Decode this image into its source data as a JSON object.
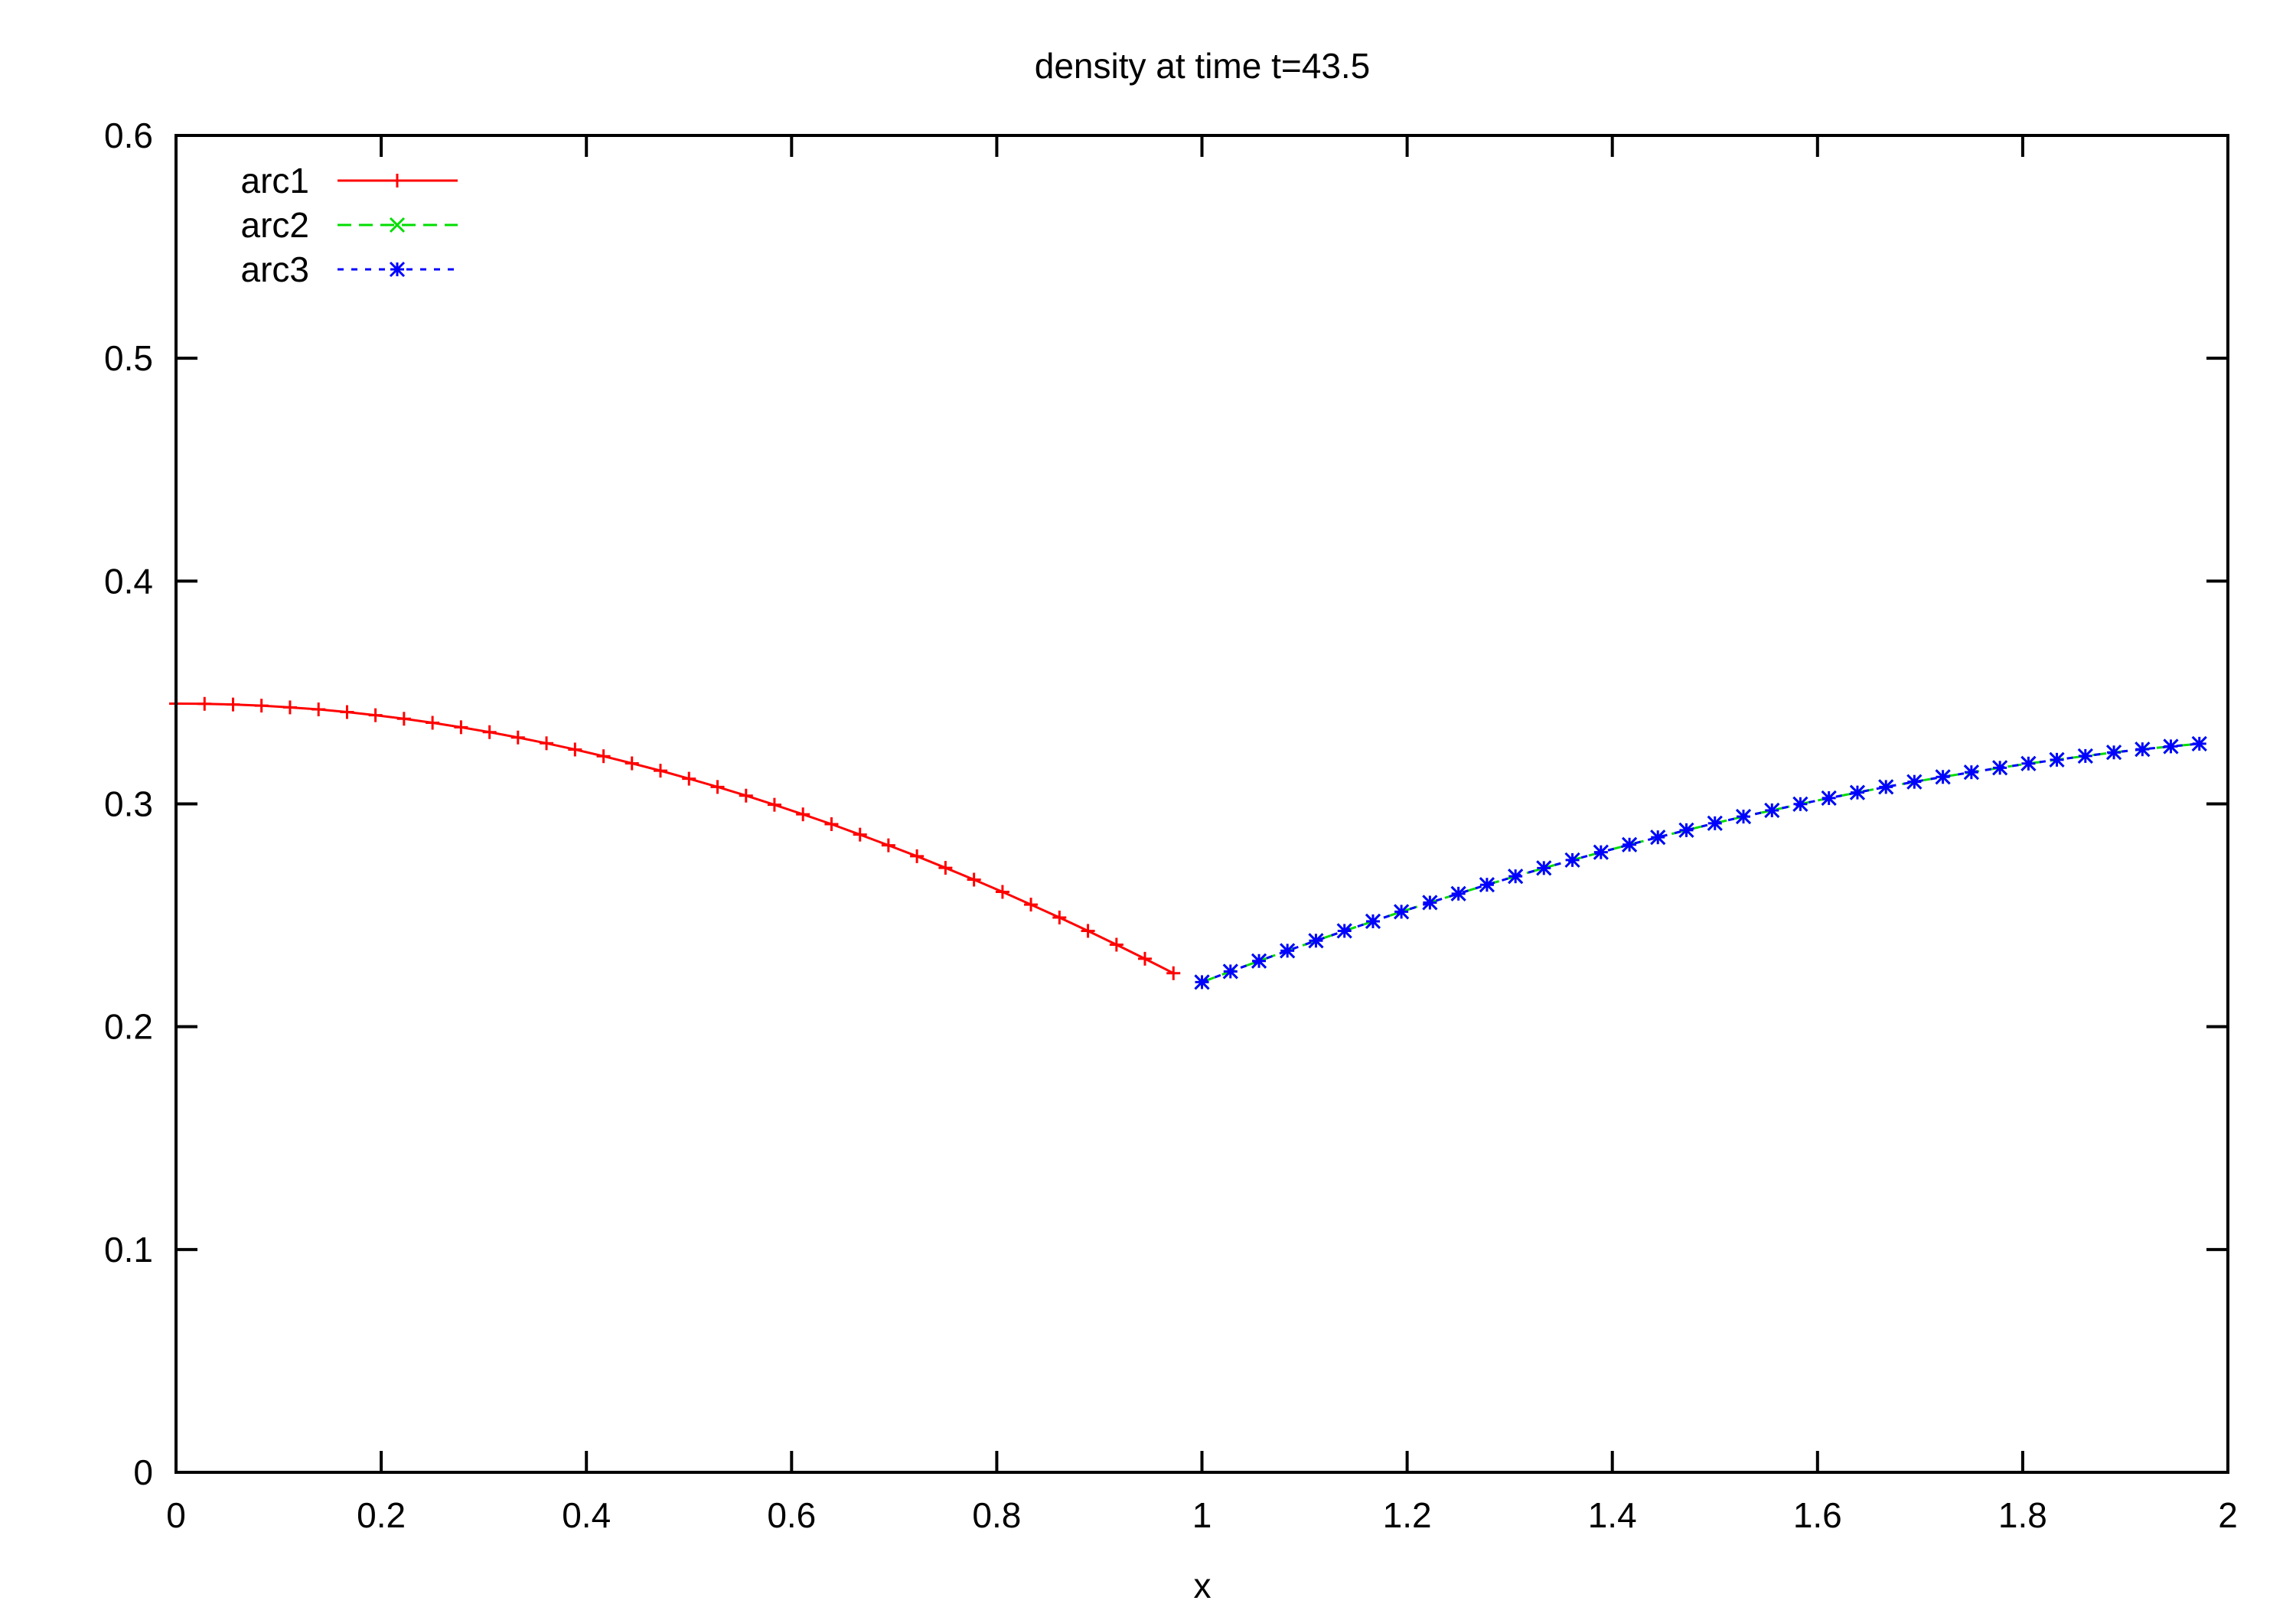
{
  "chart_data": {
    "type": "line",
    "title": "density at time t=43.5",
    "xlabel": "x",
    "ylabel": "",
    "xlim": [
      0,
      2
    ],
    "ylim": [
      0,
      0.6
    ],
    "x_ticks": [
      "0",
      "0.2",
      "0.4",
      "0.6",
      "0.8",
      "1",
      "1.2",
      "1.4",
      "1.6",
      "1.8",
      "2"
    ],
    "y_ticks": [
      "0",
      "0.1",
      "0.2",
      "0.3",
      "0.4",
      "0.5",
      "0.6"
    ],
    "grid": false,
    "legend_position": "top-left",
    "series": [
      {
        "name": "arc1",
        "color": "#ff0000",
        "line_style": "solid",
        "marker": "plus",
        "x": [
          0.0,
          0.0278,
          0.0556,
          0.0833,
          0.1111,
          0.1389,
          0.1667,
          0.1944,
          0.2222,
          0.25,
          0.2778,
          0.3056,
          0.3333,
          0.3611,
          0.3889,
          0.4167,
          0.4444,
          0.4722,
          0.5,
          0.5278,
          0.5556,
          0.5833,
          0.6111,
          0.6389,
          0.6667,
          0.6944,
          0.7222,
          0.75,
          0.7778,
          0.8056,
          0.8333,
          0.8611,
          0.8889,
          0.9167,
          0.9444,
          0.9722
        ],
        "y": [
          0.345,
          0.3449,
          0.3446,
          0.3441,
          0.3433,
          0.3424,
          0.3412,
          0.3398,
          0.3382,
          0.3364,
          0.3344,
          0.3322,
          0.3298,
          0.3272,
          0.3244,
          0.3214,
          0.3182,
          0.3149,
          0.3113,
          0.3076,
          0.3037,
          0.2996,
          0.2953,
          0.2909,
          0.2862,
          0.2814,
          0.2765,
          0.2713,
          0.266,
          0.2605,
          0.2548,
          0.249,
          0.243,
          0.2368,
          0.2305,
          0.224
        ]
      },
      {
        "name": "arc2",
        "color": "#00dd00",
        "line_style": "dashed",
        "marker": "cross",
        "x": [
          1.0,
          1.0278,
          1.0556,
          1.0833,
          1.1111,
          1.1389,
          1.1667,
          1.1944,
          1.2222,
          1.25,
          1.2778,
          1.3056,
          1.3333,
          1.3611,
          1.3889,
          1.4167,
          1.4444,
          1.4722,
          1.5,
          1.5278,
          1.5556,
          1.5833,
          1.6111,
          1.6389,
          1.6667,
          1.6944,
          1.7222,
          1.75,
          1.7778,
          1.8056,
          1.8333,
          1.8611,
          1.8889,
          1.9167,
          1.9444,
          1.9722
        ],
        "y": [
          0.22,
          0.2248,
          0.2295,
          0.2341,
          0.2386,
          0.243,
          0.2473,
          0.2516,
          0.2557,
          0.2597,
          0.2637,
          0.2675,
          0.2712,
          0.2748,
          0.2783,
          0.2817,
          0.285,
          0.2882,
          0.2913,
          0.2943,
          0.2971,
          0.2999,
          0.3026,
          0.3051,
          0.3076,
          0.3099,
          0.3121,
          0.3142,
          0.3162,
          0.3181,
          0.3198,
          0.3215,
          0.3231,
          0.3245,
          0.3258,
          0.327
        ]
      },
      {
        "name": "arc3",
        "color": "#0000ff",
        "line_style": "dotted",
        "marker": "star",
        "x": [
          1.0,
          1.0278,
          1.0556,
          1.0833,
          1.1111,
          1.1389,
          1.1667,
          1.1944,
          1.2222,
          1.25,
          1.2778,
          1.3056,
          1.3333,
          1.3611,
          1.3889,
          1.4167,
          1.4444,
          1.4722,
          1.5,
          1.5278,
          1.5556,
          1.5833,
          1.6111,
          1.6389,
          1.6667,
          1.6944,
          1.7222,
          1.75,
          1.7778,
          1.8056,
          1.8333,
          1.8611,
          1.8889,
          1.9167,
          1.9444,
          1.9722
        ],
        "y": [
          0.22,
          0.2248,
          0.2295,
          0.2341,
          0.2386,
          0.243,
          0.2473,
          0.2516,
          0.2557,
          0.2597,
          0.2637,
          0.2675,
          0.2712,
          0.2748,
          0.2783,
          0.2817,
          0.285,
          0.2882,
          0.2913,
          0.2943,
          0.2971,
          0.2999,
          0.3026,
          0.3051,
          0.3076,
          0.3099,
          0.3121,
          0.3142,
          0.3162,
          0.3181,
          0.3198,
          0.3215,
          0.3231,
          0.3245,
          0.3258,
          0.327
        ]
      }
    ]
  }
}
